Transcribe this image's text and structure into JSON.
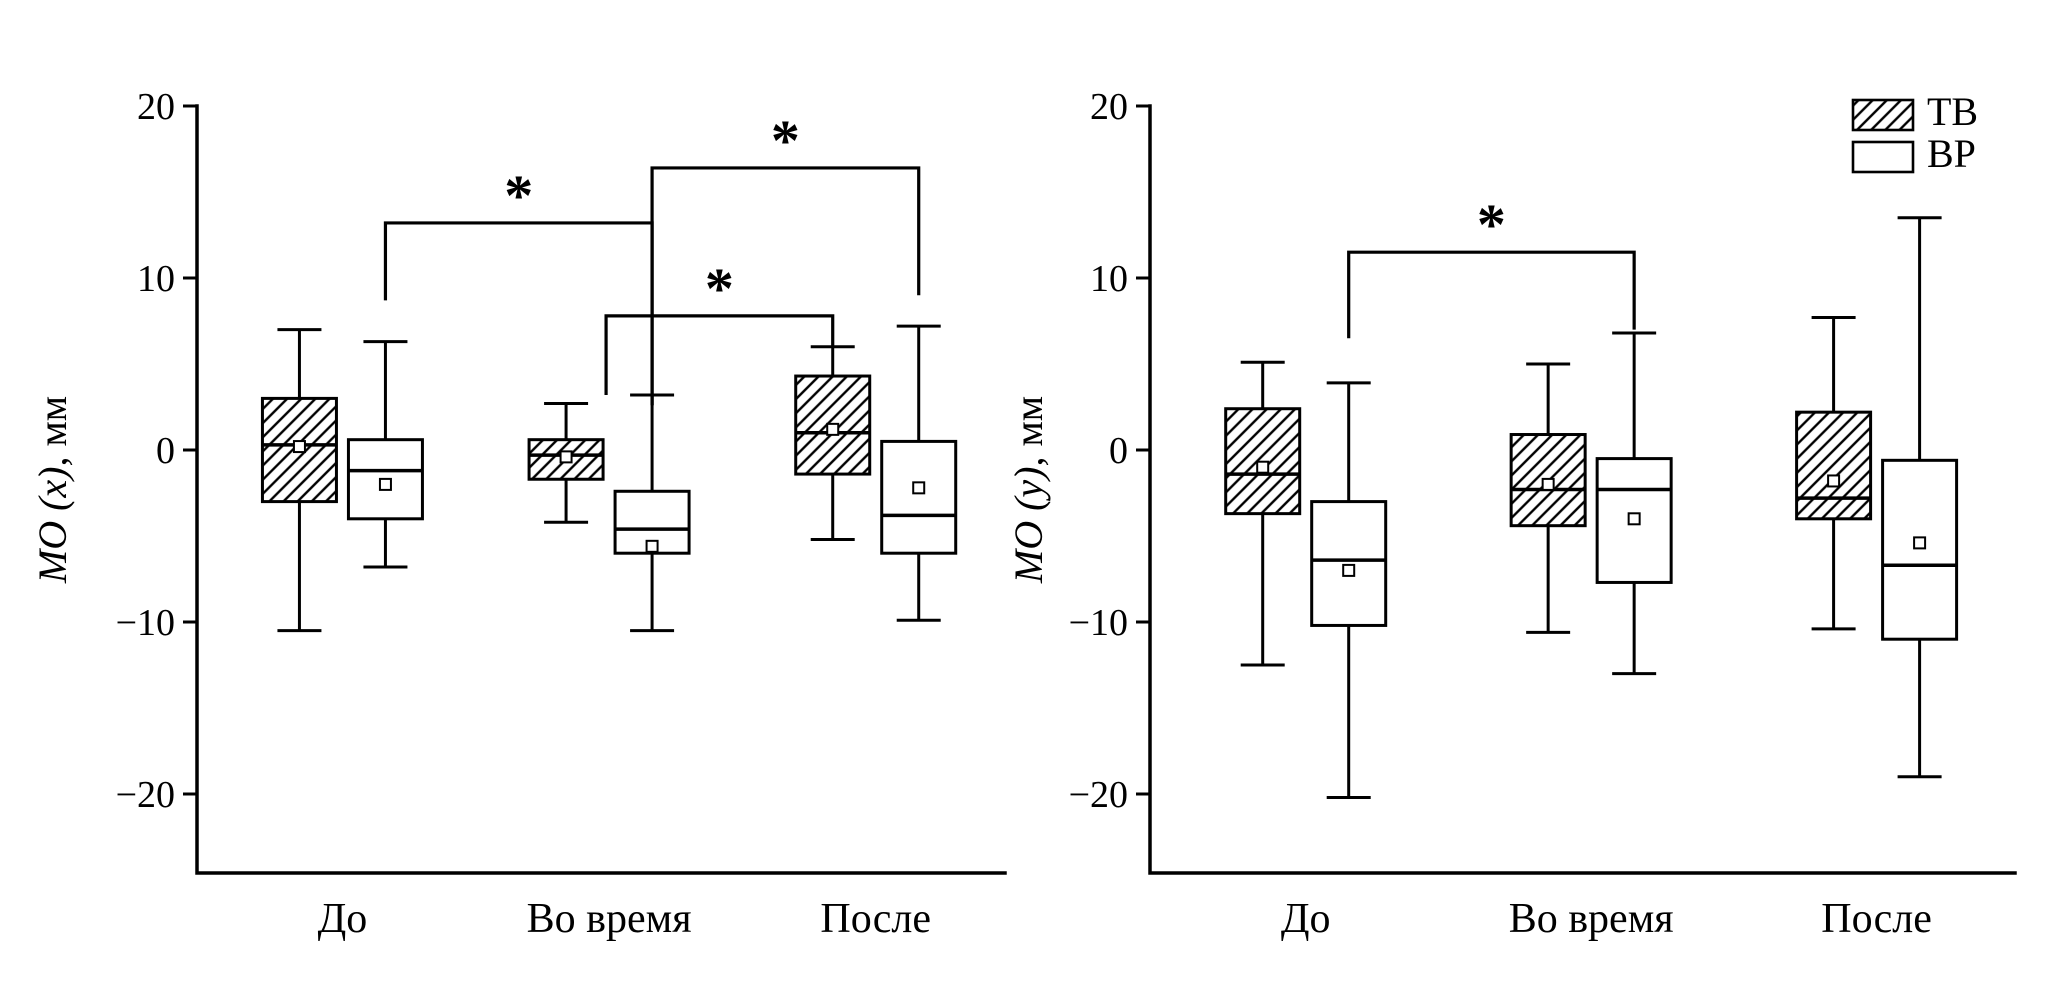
{
  "figure": {
    "background": "#ffffff",
    "ink": "#000000"
  },
  "chart_data": {
    "type": "boxplot",
    "legend": [
      {
        "label": "ТВ",
        "fill": "hatch"
      },
      {
        "label": "ВР",
        "fill": "plain"
      }
    ],
    "panels": [
      {
        "ylabel_italic": "MO (x)",
        "ylabel_rest": ", мм",
        "yticks": [
          20,
          10,
          0,
          -10,
          -20
        ],
        "ylim": [
          -24.5,
          20
        ],
        "categories": [
          "До",
          "Во время",
          "После"
        ],
        "series": [
          {
            "name": "ТВ",
            "fill": "hatch",
            "boxes": [
              {
                "low": -10.5,
                "q1": -3.0,
                "median": 0.3,
                "q3": 3.0,
                "high": 7.0,
                "mean": 0.2
              },
              {
                "low": -4.2,
                "q1": -1.7,
                "median": -0.3,
                "q3": 0.6,
                "high": 2.7,
                "mean": -0.4
              },
              {
                "low": -5.2,
                "q1": -1.4,
                "median": 1.0,
                "q3": 4.3,
                "high": 6.0,
                "mean": 1.2
              }
            ]
          },
          {
            "name": "ВР",
            "fill": "plain",
            "boxes": [
              {
                "low": -6.8,
                "q1": -4.0,
                "median": -1.2,
                "q3": 0.6,
                "high": 6.3,
                "mean": -2.0
              },
              {
                "low": -10.5,
                "q1": -6.0,
                "median": -4.6,
                "q3": -2.4,
                "high": 3.2,
                "mean": -5.6
              },
              {
                "low": -9.9,
                "q1": -6.0,
                "median": -3.8,
                "q3": 0.5,
                "high": 7.2,
                "mean": -2.2
              }
            ]
          }
        ],
        "brackets": [
          {
            "label": "*",
            "from": {
              "cat": 0,
              "series": 1
            },
            "to": {
              "cat": 1,
              "series": 1
            },
            "top": 13.2,
            "end_from": 8.7,
            "end_to": 2.6
          },
          {
            "label": "*",
            "from": {
              "cat": 1,
              "series": 1
            },
            "to": {
              "cat": 2,
              "series": 1
            },
            "top": 16.4,
            "end_from": 2.6,
            "end_to": 9.0
          },
          {
            "label": "*",
            "from": {
              "cat": 1,
              "series": 0,
              "dx": 40
            },
            "to": {
              "cat": 2,
              "series": 0
            },
            "top": 7.8,
            "end_from": 3.2,
            "end_to": 6.0
          }
        ]
      },
      {
        "ylabel_italic": "MO (y)",
        "ylabel_rest": ", мм",
        "yticks": [
          20,
          10,
          0,
          -10,
          -20
        ],
        "ylim": [
          -24.5,
          20
        ],
        "categories": [
          "До",
          "Во время",
          "После"
        ],
        "series": [
          {
            "name": "ТВ",
            "fill": "hatch",
            "boxes": [
              {
                "low": -12.5,
                "q1": -3.7,
                "median": -1.4,
                "q3": 2.4,
                "high": 5.1,
                "mean": -1.0
              },
              {
                "low": -10.6,
                "q1": -4.4,
                "median": -2.3,
                "q3": 0.9,
                "high": 5.0,
                "mean": -2.0
              },
              {
                "low": -10.4,
                "q1": -4.0,
                "median": -2.8,
                "q3": 2.2,
                "high": 7.7,
                "mean": -1.8
              }
            ]
          },
          {
            "name": "ВР",
            "fill": "plain",
            "boxes": [
              {
                "low": -20.2,
                "q1": -10.2,
                "median": -6.4,
                "q3": -3.0,
                "high": 3.9,
                "mean": -7.0
              },
              {
                "low": -13.0,
                "q1": -7.7,
                "median": -2.3,
                "q3": -0.5,
                "high": 6.8,
                "mean": -4.0
              },
              {
                "low": -19.0,
                "q1": -11.0,
                "median": -6.7,
                "q3": -0.6,
                "high": 13.5,
                "mean": -5.4
              }
            ]
          }
        ],
        "brackets": [
          {
            "label": "*",
            "from": {
              "cat": 0,
              "series": 1
            },
            "to": {
              "cat": 1,
              "series": 1
            },
            "top": 11.5,
            "end_from": 6.5,
            "end_to": 7.0
          }
        ]
      }
    ]
  }
}
